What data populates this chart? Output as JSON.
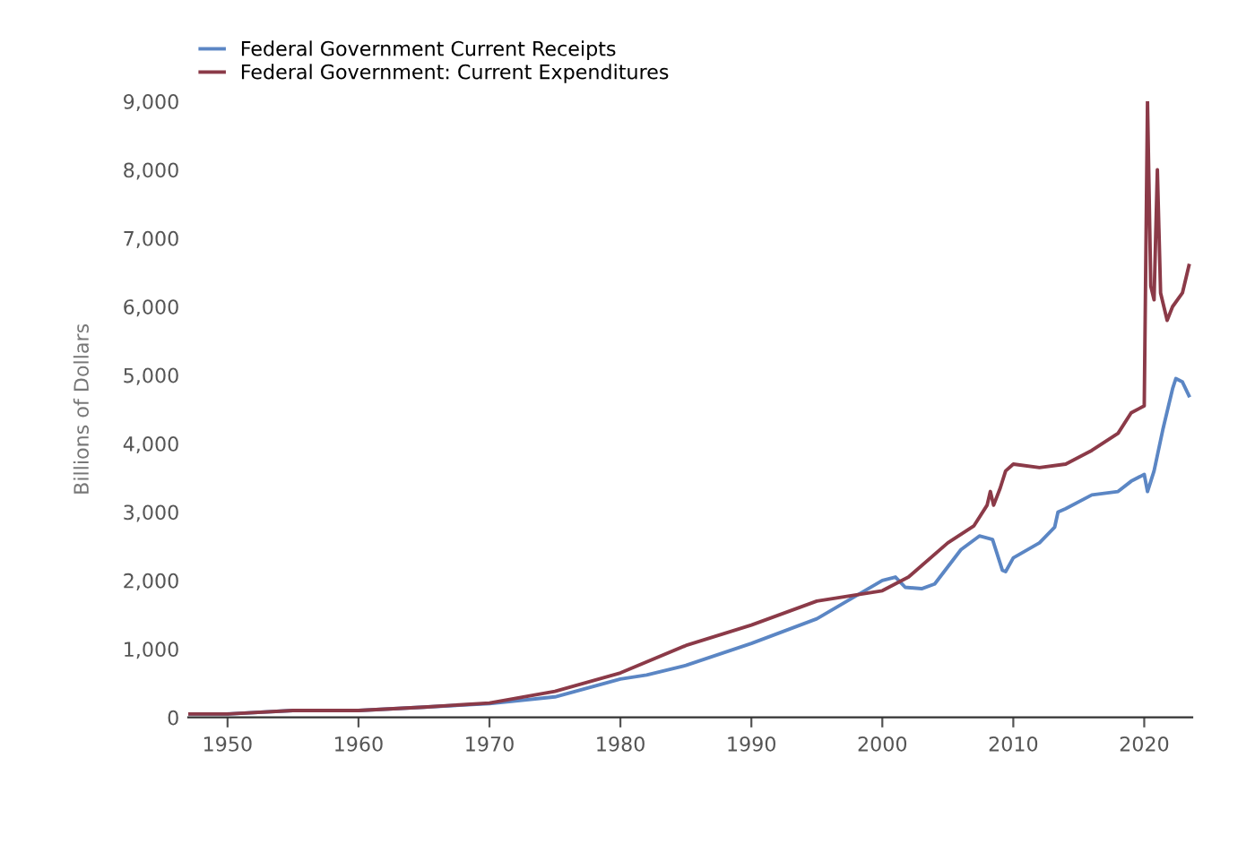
{
  "chart_data": {
    "type": "line",
    "ylabel": "Billions of Dollars",
    "legend": "top left",
    "grid": false,
    "xlim": [
      "1947",
      "2023-09"
    ],
    "xticks": [
      {
        "value": "1950",
        "label": "1950"
      },
      {
        "value": "1960",
        "label": "1960"
      },
      {
        "value": "1970",
        "label": "1970"
      },
      {
        "value": "1980",
        "label": "1980"
      },
      {
        "value": "1990",
        "label": "1990"
      },
      {
        "value": "2000",
        "label": "2000"
      },
      {
        "value": "2010",
        "label": "2010"
      },
      {
        "value": "2020",
        "label": "2020"
      }
    ],
    "ylim": [
      0,
      9000
    ],
    "yticks": [
      {
        "value": 0,
        "label": "0"
      },
      {
        "value": 1000,
        "label": "1,000"
      },
      {
        "value": 2000,
        "label": "2,000"
      },
      {
        "value": 3000,
        "label": "3,000"
      },
      {
        "value": 4000,
        "label": "4,000"
      },
      {
        "value": 5000,
        "label": "5,000"
      },
      {
        "value": 6000,
        "label": "6,000"
      },
      {
        "value": 7000,
        "label": "7,000"
      },
      {
        "value": 8000,
        "label": "8,000"
      },
      {
        "value": 9000,
        "label": "9,000"
      }
    ],
    "series": [
      {
        "name": "Federal Government Current Receipts",
        "color": "#5b86c4",
        "x": [
          "1947",
          "1950",
          "1955",
          "1960",
          "1965",
          "1970",
          "1975",
          "1980",
          "1982",
          "1985",
          "1990",
          "1995",
          "2000",
          "2001-01",
          "2001-10",
          "2003",
          "2004",
          "2006",
          "2007-06",
          "2008-06",
          "2009-03",
          "2009-06",
          "2010",
          "2012",
          "2013-03",
          "2013-06",
          "2014",
          "2016",
          "2018",
          "2019",
          "2020-01",
          "2020-04",
          "2020-10",
          "2021-06",
          "2022-03",
          "2022-06",
          "2022-12",
          "2023-06"
        ],
        "values": [
          50,
          50,
          100,
          100,
          150,
          200,
          300,
          560,
          620,
          760,
          1080,
          1440,
          2000,
          2050,
          1900,
          1880,
          1950,
          2450,
          2650,
          2600,
          2150,
          2130,
          2330,
          2550,
          2780,
          3000,
          3050,
          3250,
          3300,
          3450,
          3550,
          3300,
          3600,
          4200,
          4800,
          4950,
          4900,
          4700
        ]
      },
      {
        "name": "Federal Government: Current Expenditures",
        "color": "#8b3a48",
        "x": [
          "1947",
          "1950",
          "1955",
          "1960",
          "1965",
          "1970",
          "1975",
          "1980",
          "1985",
          "1990",
          "1995",
          "2000",
          "2002",
          "2005",
          "2007",
          "2008-01",
          "2008-04",
          "2008-07",
          "2009-01",
          "2009-06",
          "2010",
          "2012",
          "2014",
          "2016",
          "2018",
          "2019",
          "2020-01",
          "2020-04",
          "2020-07",
          "2020-10",
          "2021-01",
          "2021-04",
          "2021-10",
          "2022-03",
          "2022-12",
          "2023-06"
        ],
        "values": [
          50,
          50,
          100,
          100,
          150,
          210,
          380,
          650,
          1050,
          1350,
          1700,
          1850,
          2050,
          2550,
          2800,
          3100,
          3300,
          3100,
          3350,
          3600,
          3700,
          3650,
          3700,
          3900,
          4150,
          4450,
          4550,
          9000,
          6300,
          6100,
          8000,
          6200,
          5800,
          6000,
          6200,
          6600
        ]
      }
    ]
  }
}
